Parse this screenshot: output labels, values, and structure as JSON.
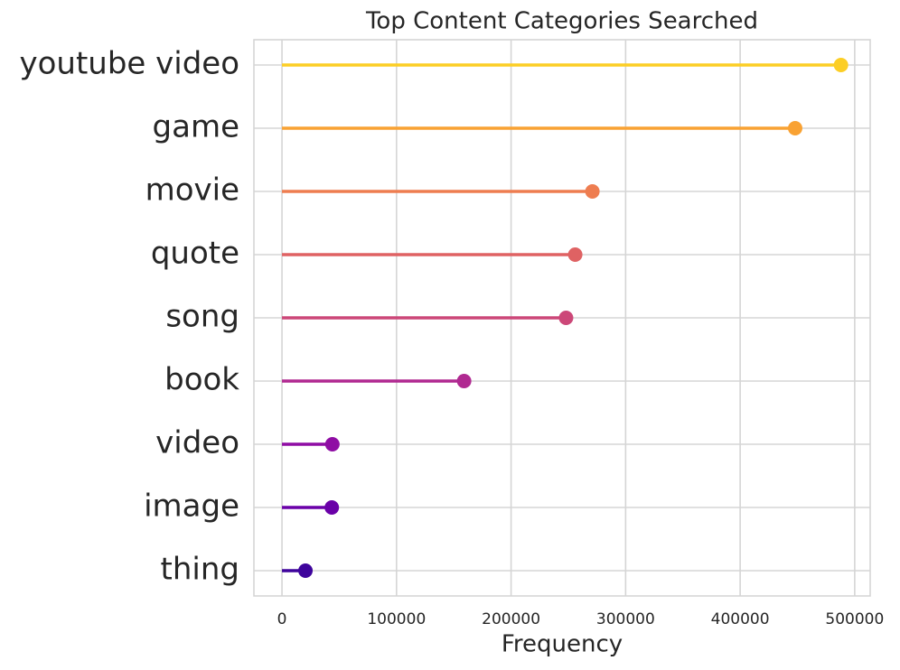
{
  "chart_data": {
    "type": "lollipop",
    "title": "Top Content Categories Searched",
    "x_label": "Frequency",
    "categories": [
      "youtube video",
      "game",
      "movie",
      "quote",
      "song",
      "book",
      "video",
      "image",
      "thing"
    ],
    "values": [
      488000,
      448000,
      271000,
      256000,
      248000,
      159000,
      44000,
      43500,
      20500
    ],
    "colors": [
      "#fcce25",
      "#f9a233",
      "#ee7d50",
      "#df6263",
      "#cc4778",
      "#b02991",
      "#8f0da4",
      "#6a00a8",
      "#3e049c"
    ],
    "xlim": [
      -24500,
      513500
    ],
    "xticks": [
      0,
      100000,
      200000,
      300000,
      400000,
      500000
    ],
    "grid": true
  }
}
